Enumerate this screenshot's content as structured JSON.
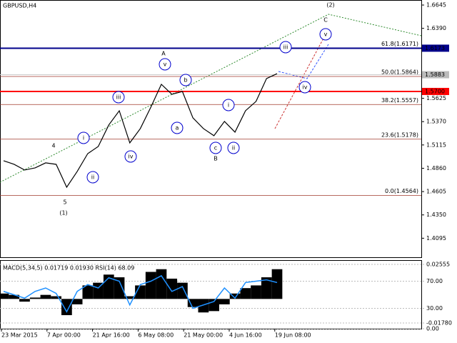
{
  "chart_data": {
    "type": "line",
    "title": "GBPUSD,H4",
    "color": "#000000",
    "values": [
      1.4942,
      1.4903,
      1.4841,
      1.4864,
      1.4919,
      1.4903,
      1.4653,
      1.4825,
      1.502,
      1.5098,
      1.5333,
      1.5489,
      1.5138,
      1.5294,
      1.5528,
      1.5778,
      1.5669,
      1.57,
      1.5411,
      1.5294,
      1.5216,
      1.5372,
      1.5255,
      1.5489,
      1.5591,
      1.5841,
      1.5895
    ],
    "ylim": [
      1.3887,
      1.67
    ],
    "yticks": [
      1.6645,
      {
        "value": 1.639,
        "label": "1.6390"
      },
      1.5625,
      {
        "value": 1.537,
        "label": "1.5370"
      },
      1.5115,
      {
        "value": 1.486,
        "label": "1.4860"
      },
      1.4605,
      {
        "value": 1.435,
        "label": "1.4350"
      },
      1.4095
    ],
    "xtick_labels": [
      "23 Mar 2015",
      "7 Apr 00:00",
      "21 Apr 16:00",
      "6 May 08:00",
      "21 May 00:00",
      "4 Jun 16:00",
      "19 Jun 08:00"
    ],
    "levels": [
      {
        "value": 1.6173,
        "label": "1.6173",
        "color": "#00008b"
      },
      {
        "value": 1.57,
        "label": "1.5700",
        "color": "#ff0000"
      }
    ],
    "current_price": {
      "value": 1.5883,
      "label": "1.5883"
    },
    "fib": [
      {
        "value": 1.6171,
        "label": "61.8(1.6171)"
      },
      {
        "value": 1.5864,
        "label": "50.0(1.5864)"
      },
      {
        "value": 1.5557,
        "label": "38.2(1.5557)"
      },
      {
        "value": 1.5178,
        "label": "23.6(1.5178)"
      },
      {
        "value": 1.4564,
        "label": "0.0(1.4564)"
      }
    ],
    "waves": [
      {
        "label": "(2)",
        "color": "#2e8b2e",
        "circled": false
      },
      {
        "label": "C",
        "color": "#a0392b",
        "circled": false
      },
      {
        "label": "A",
        "color": "#a0392b",
        "circled": false
      },
      {
        "label": "B",
        "color": "#a0392b",
        "circled": false
      },
      {
        "label": "4",
        "color": "#a0392b",
        "circled": false
      },
      {
        "label": "5",
        "color": "#a0392b",
        "circled": false
      },
      {
        "label": "(1)",
        "color": "#2e8b2e",
        "circled": false
      },
      {
        "label": "v",
        "color": "#0000cd",
        "circled": true
      },
      {
        "label": "b",
        "color": "#0000cd",
        "circled": true
      },
      {
        "label": "iii",
        "color": "#0000cd",
        "circled": true
      },
      {
        "label": "i",
        "color": "#0000cd",
        "circled": true
      },
      {
        "label": "a",
        "color": "#0000cd",
        "circled": true
      },
      {
        "label": "iv",
        "color": "#0000cd",
        "circled": true
      },
      {
        "label": "ii",
        "color": "#0000cd",
        "circled": true
      },
      {
        "label": "i",
        "color": "#0000cd",
        "circled": true
      },
      {
        "label": "c",
        "color": "#0000cd",
        "circled": true
      },
      {
        "label": "ii",
        "color": "#0000cd",
        "circled": true
      },
      {
        "label": "iii",
        "color": "#0000cd",
        "circled": true
      },
      {
        "label": "iv",
        "color": "#0000cd",
        "circled": true
      },
      {
        "label": "v",
        "color": "#0000cd",
        "circled": true
      }
    ],
    "indicator": {
      "title": "MACD(5,34,5) 0.01719 0.01930 RSI(14) 68.09",
      "macd": {
        "color": "#000000",
        "values": [
          0.004,
          0.003,
          -0.002,
          0.001,
          0.003,
          0.002,
          -0.012,
          -0.004,
          0.01,
          0.012,
          0.018,
          0.016,
          0.002,
          0.01,
          0.02,
          0.022,
          0.015,
          0.012,
          -0.006,
          -0.01,
          -0.009,
          -0.004,
          0.004,
          0.008,
          0.01,
          0.016,
          0.022
        ],
        "ylim": [
          -0.02203,
          0.02819
        ],
        "yticks": [
          0.02555,
          {
            "value": -0.0178,
            "label": "-0.01780"
          }
        ]
      },
      "rsi": {
        "color": "#1e90ff",
        "values": [
          55,
          50,
          45,
          55,
          60,
          52,
          25,
          55,
          65,
          60,
          75,
          70,
          35,
          65,
          70,
          78,
          55,
          62,
          30,
          35,
          40,
          60,
          45,
          68,
          70,
          72,
          68
        ],
        "ylim": [
          0,
          100
        ],
        "yticks": [
          {
            "value": 70,
            "label": "70.00"
          },
          {
            "value": 0,
            "label": "0.00"
          },
          {
            "value": 30,
            "label": "30.00"
          }
        ]
      }
    }
  }
}
